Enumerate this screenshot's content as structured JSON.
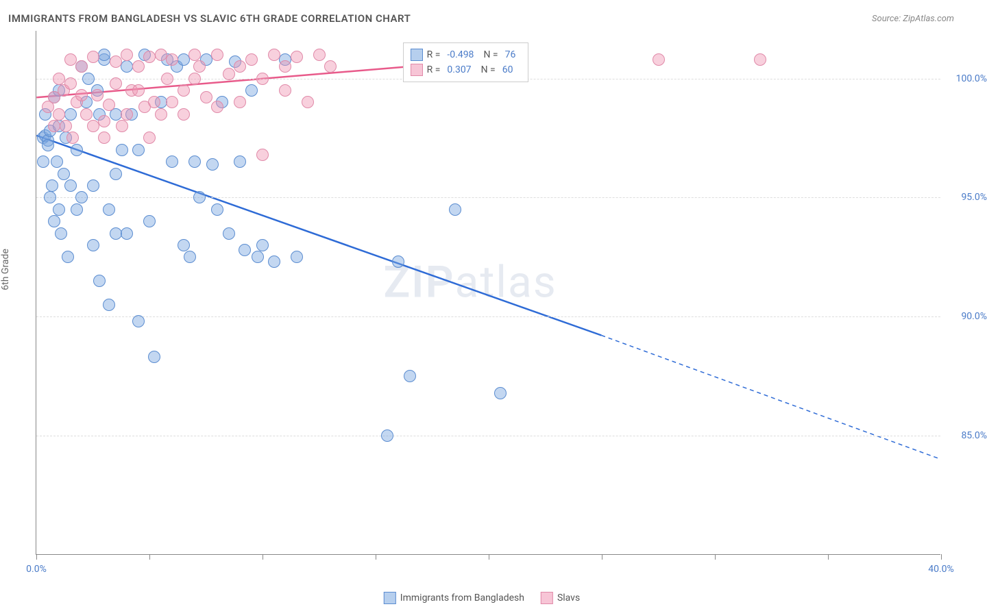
{
  "title": "IMMIGRANTS FROM BANGLADESH VS SLAVIC 6TH GRADE CORRELATION CHART",
  "source": "Source: ZipAtlas.com",
  "y_axis_label": "6th Grade",
  "watermark_zip": "ZIP",
  "watermark_atlas": "atlas",
  "chart": {
    "type": "scatter",
    "xlim": [
      0,
      40
    ],
    "ylim": [
      80,
      102
    ],
    "x_tick_step": 5,
    "x_labels": [
      {
        "x": 0,
        "label": "0.0%"
      },
      {
        "x": 40,
        "label": "40.0%"
      }
    ],
    "y_labels": [
      {
        "y": 85,
        "label": "85.0%"
      },
      {
        "y": 90,
        "label": "90.0%"
      },
      {
        "y": 95,
        "label": "95.0%"
      },
      {
        "y": 100,
        "label": "100.0%"
      }
    ],
    "gridlines_y": [
      85,
      90,
      95,
      100
    ],
    "point_radius": 9,
    "series": [
      {
        "name": "Immigrants from Bangladesh",
        "fill_color": "rgba(122, 167, 224, 0.45)",
        "stroke_color": "#5a8cd0",
        "R": "-0.498",
        "N": "76",
        "trend": {
          "solid": {
            "x1": 0,
            "y1": 97.6,
            "x2": 25,
            "y2": 89.2
          },
          "dashed": {
            "x1": 25,
            "y1": 89.2,
            "x2": 40,
            "y2": 84.0
          },
          "color": "#2e6bd6",
          "width": 2.5
        },
        "points": [
          [
            0.3,
            97.5
          ],
          [
            0.4,
            97.6
          ],
          [
            0.5,
            97.4
          ],
          [
            0.6,
            97.8
          ],
          [
            0.5,
            97.2
          ],
          [
            0.4,
            98.5
          ],
          [
            0.8,
            99.2
          ],
          [
            1.0,
            98.0
          ],
          [
            0.9,
            96.5
          ],
          [
            1.2,
            96.0
          ],
          [
            0.7,
            95.5
          ],
          [
            1.5,
            98.5
          ],
          [
            1.3,
            97.5
          ],
          [
            1.8,
            97.0
          ],
          [
            2.0,
            100.5
          ],
          [
            2.2,
            99.0
          ],
          [
            2.5,
            95.5
          ],
          [
            2.7,
            99.5
          ],
          [
            3.0,
            100.8
          ],
          [
            3.2,
            94.5
          ],
          [
            3.5,
            93.5
          ],
          [
            3.8,
            97.0
          ],
          [
            4.0,
            100.5
          ],
          [
            4.2,
            98.5
          ],
          [
            3.0,
            101.0
          ],
          [
            4.5,
            89.8
          ],
          [
            5.0,
            94.0
          ],
          [
            5.2,
            88.3
          ],
          [
            5.5,
            99.0
          ],
          [
            5.8,
            100.8
          ],
          [
            6.0,
            96.5
          ],
          [
            6.2,
            100.5
          ],
          [
            6.5,
            93.0
          ],
          [
            6.8,
            92.5
          ],
          [
            7.0,
            96.5
          ],
          [
            7.2,
            95.0
          ],
          [
            7.5,
            100.8
          ],
          [
            7.8,
            96.4
          ],
          [
            8.0,
            94.5
          ],
          [
            8.2,
            99.0
          ],
          [
            8.5,
            93.5
          ],
          [
            8.8,
            100.7
          ],
          [
            9.0,
            96.5
          ],
          [
            9.2,
            92.8
          ],
          [
            9.5,
            99.5
          ],
          [
            10.0,
            93.0
          ],
          [
            10.5,
            92.3
          ],
          [
            11.0,
            100.8
          ],
          [
            11.5,
            92.5
          ],
          [
            4.8,
            101.0
          ],
          [
            6.5,
            100.8
          ],
          [
            1.0,
            94.5
          ],
          [
            2.0,
            95.0
          ],
          [
            3.5,
            96.0
          ],
          [
            4.0,
            93.5
          ],
          [
            16.0,
            92.3
          ],
          [
            16.5,
            87.5
          ],
          [
            18.5,
            94.5
          ],
          [
            20.5,
            86.8
          ],
          [
            15.5,
            85.0
          ],
          [
            9.8,
            92.5
          ],
          [
            2.8,
            98.5
          ],
          [
            1.5,
            95.5
          ],
          [
            0.8,
            94.0
          ],
          [
            1.0,
            99.5
          ],
          [
            2.3,
            100.0
          ],
          [
            3.5,
            98.5
          ],
          [
            4.5,
            97.0
          ],
          [
            1.8,
            94.5
          ],
          [
            2.5,
            93.0
          ],
          [
            0.3,
            96.5
          ],
          [
            0.6,
            95.0
          ],
          [
            1.1,
            93.5
          ],
          [
            1.4,
            92.5
          ],
          [
            2.8,
            91.5
          ],
          [
            3.2,
            90.5
          ]
        ]
      },
      {
        "name": "Slavs",
        "fill_color": "rgba(240, 150, 180, 0.45)",
        "stroke_color": "#e089a8",
        "R": "0.307",
        "N": "60",
        "trend": {
          "solid": {
            "x1": 0,
            "y1": 99.2,
            "x2": 16.5,
            "y2": 100.5
          },
          "dashed": null,
          "color": "#e85a8a",
          "width": 2.5
        },
        "points": [
          [
            0.8,
            99.2
          ],
          [
            1.0,
            100.0
          ],
          [
            1.2,
            99.5
          ],
          [
            1.5,
            100.8
          ],
          [
            1.8,
            99.0
          ],
          [
            2.0,
            100.5
          ],
          [
            2.2,
            98.5
          ],
          [
            2.5,
            100.9
          ],
          [
            2.7,
            99.3
          ],
          [
            3.0,
            98.2
          ],
          [
            3.2,
            98.9
          ],
          [
            3.5,
            100.7
          ],
          [
            3.8,
            98.0
          ],
          [
            4.0,
            101.0
          ],
          [
            4.2,
            99.5
          ],
          [
            4.5,
            100.5
          ],
          [
            4.8,
            98.8
          ],
          [
            5.0,
            100.9
          ],
          [
            5.2,
            99.0
          ],
          [
            5.5,
            101.0
          ],
          [
            5.8,
            100.0
          ],
          [
            6.0,
            100.8
          ],
          [
            6.5,
            99.5
          ],
          [
            7.0,
            101.0
          ],
          [
            7.2,
            100.5
          ],
          [
            7.5,
            99.2
          ],
          [
            8.0,
            101.0
          ],
          [
            8.5,
            100.2
          ],
          [
            9.0,
            99.0
          ],
          [
            9.5,
            100.8
          ],
          [
            10.0,
            96.8
          ],
          [
            10.5,
            101.0
          ],
          [
            11.0,
            100.5
          ],
          [
            11.5,
            100.9
          ],
          [
            12.5,
            101.0
          ],
          [
            13.0,
            100.5
          ],
          [
            3.0,
            97.5
          ],
          [
            3.5,
            99.8
          ],
          [
            4.0,
            98.5
          ],
          [
            4.5,
            99.5
          ],
          [
            5.0,
            97.5
          ],
          [
            27.5,
            100.8
          ],
          [
            32.0,
            100.8
          ],
          [
            1.5,
            99.8
          ],
          [
            2.0,
            99.3
          ],
          [
            2.5,
            98.0
          ],
          [
            1.0,
            98.5
          ],
          [
            1.3,
            98.0
          ],
          [
            1.6,
            97.5
          ],
          [
            0.5,
            98.8
          ],
          [
            0.8,
            98.0
          ],
          [
            6.5,
            98.5
          ],
          [
            7.0,
            100.0
          ],
          [
            8.0,
            98.8
          ],
          [
            9.0,
            100.5
          ],
          [
            10.0,
            100.0
          ],
          [
            11.0,
            99.5
          ],
          [
            12.0,
            99.0
          ],
          [
            5.5,
            98.5
          ],
          [
            6.0,
            99.0
          ]
        ]
      }
    ]
  },
  "legend": {
    "R_label": "R =",
    "N_label": "N =",
    "swatch_blue_fill": "rgba(122, 167, 224, 0.55)",
    "swatch_blue_stroke": "#5a8cd0",
    "swatch_pink_fill": "rgba(240, 150, 180, 0.55)",
    "swatch_pink_stroke": "#e089a8"
  },
  "bottom_legend": {
    "series1": "Immigrants from Bangladesh",
    "series2": "Slavs"
  }
}
